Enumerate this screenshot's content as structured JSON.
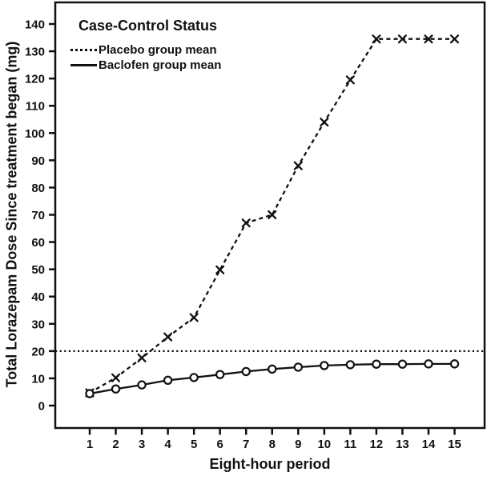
{
  "figure": {
    "background": "#ffffff",
    "ink_color": "#111111"
  },
  "chart_data": {
    "type": "line",
    "title": "",
    "xlabel": "Eight-hour period",
    "ylabel": "Total Lorazepam Dose Since treatment began (mg)",
    "categories": [
      1,
      2,
      3,
      4,
      5,
      6,
      7,
      8,
      9,
      10,
      11,
      12,
      13,
      14,
      15
    ],
    "yticks": [
      0,
      10,
      20,
      30,
      40,
      50,
      60,
      70,
      80,
      90,
      100,
      110,
      120,
      130,
      140
    ],
    "ylim": [
      0,
      140
    ],
    "grid": false,
    "legend": {
      "title": "Case-Control Status",
      "position": "top-left"
    },
    "reference_line": {
      "y": 20,
      "style": "dotted"
    },
    "series": [
      {
        "name": "Placebo group mean",
        "line_style": "dashed",
        "marker": "x",
        "values": [
          4.7,
          10.2,
          17.5,
          25.2,
          32.3,
          49.8,
          67.0,
          70.0,
          88.0,
          104.0,
          119.5,
          134.5,
          134.5,
          134.5,
          134.5
        ]
      },
      {
        "name": "Baclofen group mean",
        "line_style": "solid",
        "marker": "circle",
        "values": [
          4.4,
          6.1,
          7.6,
          9.3,
          10.3,
          11.4,
          12.5,
          13.4,
          14.1,
          14.7,
          15.0,
          15.2,
          15.2,
          15.3,
          15.3
        ]
      }
    ]
  }
}
